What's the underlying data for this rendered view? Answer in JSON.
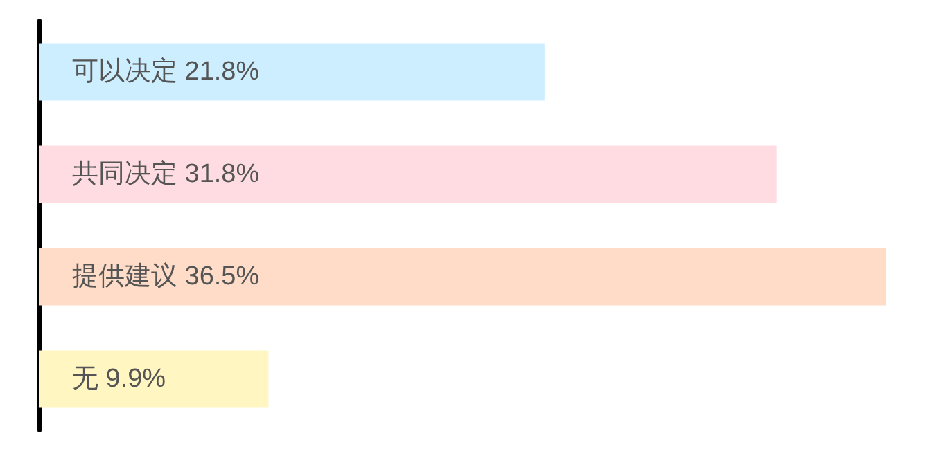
{
  "chart_data": {
    "type": "bar",
    "orientation": "horizontal",
    "tick_labels": false,
    "categories": [
      "可以决定",
      "共同决定",
      "提供建议",
      "无"
    ],
    "values": [
      21.8,
      31.8,
      36.5,
      9.9
    ],
    "value_labels": [
      "21.8%",
      "31.8%",
      "36.5%",
      "9.9%"
    ],
    "colors": [
      "#cceeff",
      "#ffdce2",
      "#ffdcc8",
      "#fff6c2"
    ],
    "grid": false
  }
}
